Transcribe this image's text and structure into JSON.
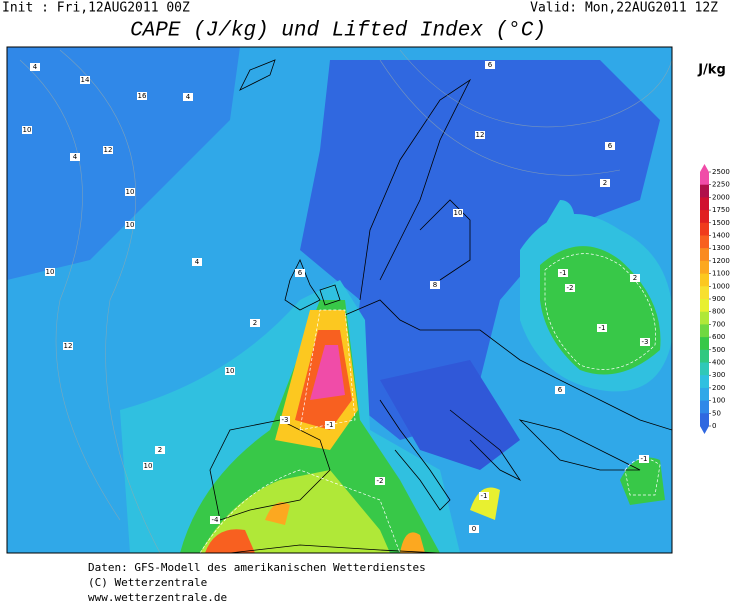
{
  "header": {
    "init": "Init : Fri,12AUG2011 00Z",
    "valid": "Valid: Mon,22AUG2011 12Z",
    "title": "CAPE (J/kg) und Lifted Index (°C)",
    "unit": "J/kg"
  },
  "colorbar": {
    "ticks": [
      2500,
      2250,
      2000,
      1750,
      1500,
      1400,
      1300,
      1200,
      1100,
      1000,
      900,
      800,
      700,
      600,
      500,
      400,
      300,
      200,
      100,
      50,
      0
    ],
    "colors": [
      "#f04ca8",
      "#b0104a",
      "#d01030",
      "#e02020",
      "#f03c1c",
      "#f86020",
      "#fa8a20",
      "#fca820",
      "#fcc820",
      "#f8e030",
      "#e8f030",
      "#b0e838",
      "#70d840",
      "#38c848",
      "#30c880",
      "#30c8b8",
      "#30c0e0",
      "#30a8e8",
      "#3088e8",
      "#3068e0"
    ]
  },
  "map": {
    "labels": [
      4,
      14,
      16,
      4,
      10,
      4,
      12,
      10,
      10,
      10,
      12,
      4,
      6,
      2,
      10,
      -3,
      -1,
      2,
      10,
      6,
      12,
      6,
      2,
      10,
      -1,
      -2,
      -1,
      -3,
      2,
      -1,
      -1,
      -2,
      0,
      -4,
      6,
      8
    ]
  },
  "footer": {
    "lines": [
      "Daten: GFS-Modell des amerikanischen Wetterdienstes",
      "(C) Wetterzentrale",
      "www.wetterzentrale.de"
    ]
  }
}
